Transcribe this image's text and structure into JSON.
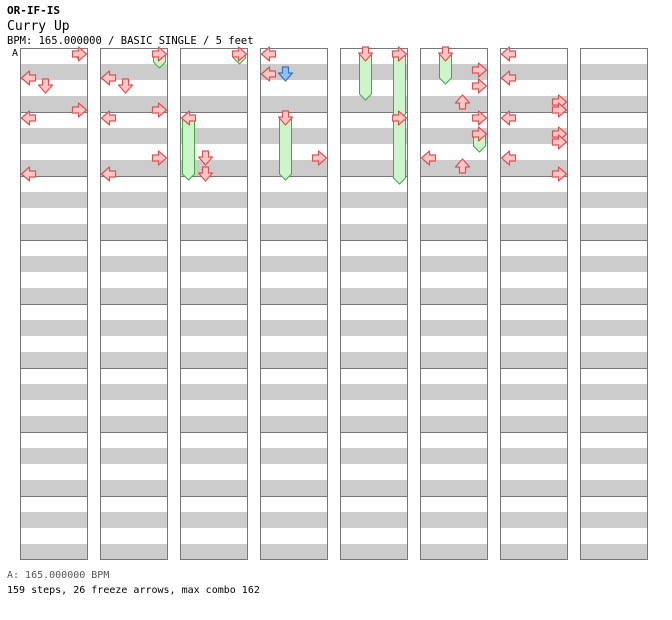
{
  "header": {
    "artist": "OR-IF-IS",
    "title": "Curry Up",
    "info": "BPM: 165.000000 / BASIC SINGLE / 5 feet"
  },
  "bpm_marker": "A",
  "footer": {
    "bpm_line": "A: 165.000000 BPM",
    "stats": "159 steps, 26 freeze arrows, max combo 162"
  },
  "colors": {
    "arrow_fill": "#ffc8c8",
    "arrow_stroke": "#e05050",
    "blue_fill": "#8ec0f4",
    "blue_stroke": "#3a70c0",
    "freeze_fill": "#ccf5cc",
    "freeze_stroke": "#44aa44",
    "band": "#cccccc",
    "border": "#777777"
  },
  "chart": {
    "columns": 8,
    "measures_per_column": 8,
    "lanes": 4,
    "rows_per_measure": 16,
    "notes": [
      {
        "c": 0,
        "m": 0,
        "r": 0,
        "l": 3,
        "t": "freeze",
        "e": 0
      },
      {
        "c": 0,
        "m": 0,
        "r": 6,
        "l": 0,
        "t": "normal"
      },
      {
        "c": 0,
        "m": 0,
        "r": 8,
        "l": 1,
        "t": "normal"
      },
      {
        "c": 0,
        "m": 0,
        "r": 14,
        "l": 3,
        "t": "normal"
      },
      {
        "c": 1,
        "m": 0,
        "r": 0,
        "l": 3,
        "t": "freeze",
        "e": 2
      },
      {
        "c": 1,
        "m": 0,
        "r": 6,
        "l": 0,
        "t": "normal"
      },
      {
        "c": 1,
        "m": 0,
        "r": 8,
        "l": 1,
        "t": "normal"
      },
      {
        "c": 1,
        "m": 0,
        "r": 14,
        "l": 3,
        "t": "normal"
      },
      {
        "c": 2,
        "m": 0,
        "r": 0,
        "l": 3,
        "t": "freeze",
        "e": 1
      },
      {
        "c": 3,
        "m": 0,
        "r": 0,
        "l": 0,
        "t": "normal"
      },
      {
        "c": 3,
        "m": 0,
        "r": 5,
        "l": 0,
        "t": "normal"
      },
      {
        "c": 3,
        "m": 0,
        "r": 5,
        "l": 1,
        "t": "blue"
      },
      {
        "c": 4,
        "m": 0,
        "r": 0,
        "l": 1,
        "t": "freeze",
        "e": 10
      },
      {
        "c": 4,
        "m": 0,
        "r": 0,
        "l": 3,
        "t": "freeze",
        "e": 15
      },
      {
        "c": 5,
        "m": 0,
        "r": 0,
        "l": 1,
        "t": "freeze",
        "e": 6
      },
      {
        "c": 5,
        "m": 0,
        "r": 4,
        "l": 3,
        "t": "normal"
      },
      {
        "c": 5,
        "m": 0,
        "r": 12,
        "l": 2,
        "t": "normal"
      },
      {
        "c": 5,
        "m": 0,
        "r": 8,
        "l": 3,
        "t": "normal"
      },
      {
        "c": 6,
        "m": 0,
        "r": 0,
        "l": 0,
        "t": "normal"
      },
      {
        "c": 6,
        "m": 0,
        "r": 6,
        "l": 0,
        "t": "normal"
      },
      {
        "c": 6,
        "m": 0,
        "r": 12,
        "l": 3,
        "t": "normal"
      },
      {
        "c": 6,
        "m": 0,
        "r": 14,
        "l": 3,
        "t": "normal"
      },
      {
        "c": 0,
        "m": 1,
        "r": 0,
        "l": 0,
        "t": "normal"
      },
      {
        "c": 0,
        "m": 1,
        "r": 14,
        "l": 0,
        "t": "normal"
      },
      {
        "c": 1,
        "m": 1,
        "r": 0,
        "l": 0,
        "t": "normal"
      },
      {
        "c": 1,
        "m": 1,
        "r": 10,
        "l": 3,
        "t": "normal"
      },
      {
        "c": 1,
        "m": 1,
        "r": 14,
        "l": 0,
        "t": "normal"
      },
      {
        "c": 2,
        "m": 1,
        "r": 0,
        "l": 0,
        "t": "freeze",
        "e": 14
      },
      {
        "c": 2,
        "m": 1,
        "r": 10,
        "l": 1,
        "t": "normal"
      },
      {
        "c": 2,
        "m": 1,
        "r": 14,
        "l": 1,
        "t": "normal"
      },
      {
        "c": 3,
        "m": 1,
        "r": 0,
        "l": 1,
        "t": "freeze",
        "e": 14
      },
      {
        "c": 3,
        "m": 1,
        "r": 10,
        "l": 3,
        "t": "normal"
      },
      {
        "c": 4,
        "m": 1,
        "r": 0,
        "l": 3,
        "t": "freeze",
        "e": 15
      },
      {
        "c": 5,
        "m": 1,
        "r": 0,
        "l": 3,
        "t": "normal"
      },
      {
        "c": 5,
        "m": 1,
        "r": 4,
        "l": 3,
        "t": "freeze",
        "e": 7
      },
      {
        "c": 5,
        "m": 1,
        "r": 10,
        "l": 0,
        "t": "normal"
      },
      {
        "c": 5,
        "m": 1,
        "r": 12,
        "l": 2,
        "t": "normal"
      },
      {
        "c": 6,
        "m": 1,
        "r": 0,
        "l": 0,
        "t": "normal"
      },
      {
        "c": 6,
        "m": 1,
        "r": 4,
        "l": 3,
        "t": "normal"
      },
      {
        "c": 6,
        "m": 1,
        "r": 6,
        "l": 3,
        "t": "normal"
      },
      {
        "c": 6,
        "m": 1,
        "r": 10,
        "l": 0,
        "t": "normal"
      },
      {
        "c": 6,
        "m": 1,
        "r": 14,
        "l": 3,
        "t": "normal"
      }
    ]
  }
}
